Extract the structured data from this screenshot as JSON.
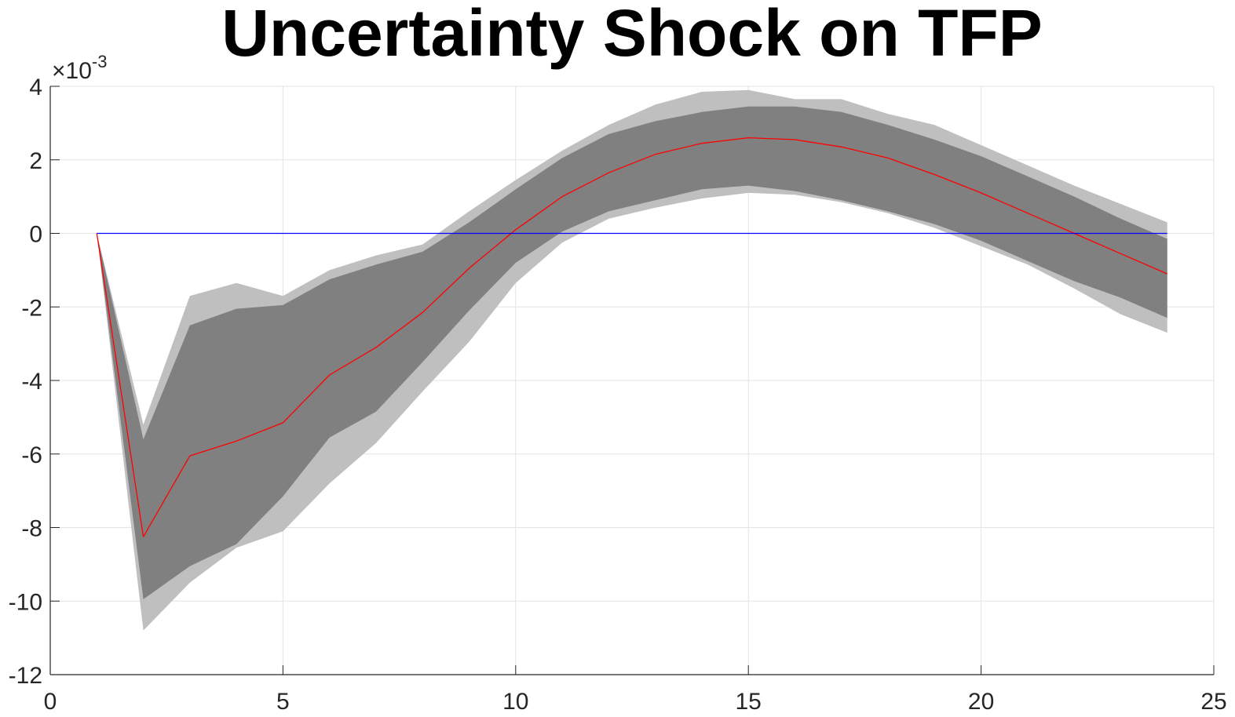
{
  "chart_data": {
    "type": "area",
    "title": "Uncertainty Shock on TFP",
    "xlabel": "",
    "ylabel": "",
    "exponent_label": {
      "base": "10",
      "power": "-3"
    },
    "xlim": [
      0,
      25
    ],
    "ylim": [
      -12,
      4
    ],
    "y_scale_factor": 0.001,
    "grid": true,
    "xticks": [
      0,
      5,
      10,
      15,
      20,
      25
    ],
    "yticks": [
      -12,
      -10,
      -8,
      -6,
      -4,
      -2,
      0,
      2,
      4
    ],
    "x": [
      1,
      2,
      3,
      4,
      5,
      6,
      7,
      8,
      9,
      10,
      11,
      12,
      13,
      14,
      15,
      16,
      17,
      18,
      19,
      20,
      21,
      22,
      23,
      24
    ],
    "series": [
      {
        "kind": "band",
        "color": "#bfbfbf",
        "upper": [
          0.0,
          -5.2,
          -1.7,
          -1.35,
          -1.7,
          -1.0,
          -0.6,
          -0.3,
          0.6,
          1.45,
          2.25,
          2.95,
          3.5,
          3.85,
          3.9,
          3.65,
          3.65,
          3.25,
          2.95,
          2.4,
          1.85,
          1.3,
          0.8,
          0.3
        ],
        "lower": [
          0.0,
          -10.8,
          -9.5,
          -8.55,
          -8.1,
          -6.8,
          -5.7,
          -4.3,
          -2.95,
          -1.35,
          -0.25,
          0.4,
          0.7,
          0.95,
          1.1,
          1.05,
          0.85,
          0.55,
          0.15,
          -0.35,
          -0.85,
          -1.5,
          -2.2,
          -2.7
        ]
      },
      {
        "kind": "band",
        "color": "#808080",
        "upper": [
          0.0,
          -5.6,
          -2.5,
          -2.05,
          -1.95,
          -1.25,
          -0.85,
          -0.5,
          0.3,
          1.2,
          2.05,
          2.7,
          3.05,
          3.3,
          3.45,
          3.45,
          3.3,
          2.95,
          2.55,
          2.1,
          1.55,
          1.0,
          0.4,
          -0.15
        ],
        "lower": [
          0.0,
          -9.95,
          -9.05,
          -8.45,
          -7.15,
          -5.55,
          -4.85,
          -3.5,
          -2.1,
          -0.8,
          0.05,
          0.6,
          0.9,
          1.2,
          1.3,
          1.15,
          0.9,
          0.6,
          0.25,
          -0.2,
          -0.75,
          -1.3,
          -1.75,
          -2.3
        ]
      },
      {
        "kind": "line",
        "color": "#ff0000",
        "values": [
          0.0,
          -8.25,
          -6.05,
          -5.65,
          -5.15,
          -3.85,
          -3.1,
          -2.15,
          -0.95,
          0.1,
          1.0,
          1.65,
          2.15,
          2.45,
          2.6,
          2.55,
          2.35,
          2.05,
          1.6,
          1.1,
          0.55,
          0.0,
          -0.55,
          -1.1
        ]
      },
      {
        "kind": "line",
        "color": "#0000ff",
        "values": [
          0,
          0,
          0,
          0,
          0,
          0,
          0,
          0,
          0,
          0,
          0,
          0,
          0,
          0,
          0,
          0,
          0,
          0,
          0,
          0,
          0,
          0,
          0,
          0
        ]
      }
    ]
  }
}
